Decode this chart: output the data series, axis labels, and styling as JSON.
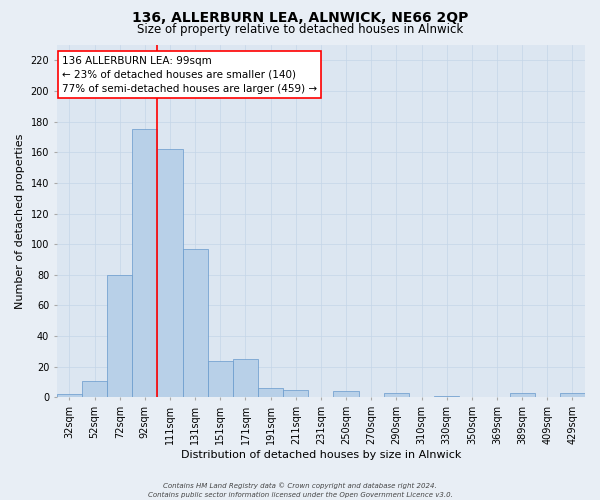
{
  "title": "136, ALLERBURN LEA, ALNWICK, NE66 2QP",
  "subtitle": "Size of property relative to detached houses in Alnwick",
  "xlabel": "Distribution of detached houses by size in Alnwick",
  "ylabel": "Number of detached properties",
  "bar_labels": [
    "32sqm",
    "52sqm",
    "72sqm",
    "92sqm",
    "111sqm",
    "131sqm",
    "151sqm",
    "171sqm",
    "191sqm",
    "211sqm",
    "231sqm",
    "250sqm",
    "270sqm",
    "290sqm",
    "310sqm",
    "330sqm",
    "350sqm",
    "369sqm",
    "389sqm",
    "409sqm",
    "429sqm"
  ],
  "bar_values": [
    2,
    11,
    80,
    175,
    162,
    97,
    24,
    25,
    6,
    5,
    0,
    4,
    0,
    3,
    0,
    1,
    0,
    0,
    3,
    0,
    3
  ],
  "bar_color": "#b8d0e8",
  "bar_edge_color": "#6699cc",
  "vline_color": "red",
  "vline_position": 3.5,
  "ylim": [
    0,
    230
  ],
  "yticks": [
    0,
    20,
    40,
    60,
    80,
    100,
    120,
    140,
    160,
    180,
    200,
    220
  ],
  "annotation_title": "136 ALLERBURN LEA: 99sqm",
  "annotation_line1": "← 23% of detached houses are smaller (140)",
  "annotation_line2": "77% of semi-detached houses are larger (459) →",
  "annotation_box_color": "white",
  "annotation_box_edge": "red",
  "footer_line1": "Contains HM Land Registry data © Crown copyright and database right 2024.",
  "footer_line2": "Contains public sector information licensed under the Open Government Licence v3.0.",
  "background_color": "#e8eef5",
  "plot_bg_color": "#dce6f1",
  "grid_color": "#c5d5e8",
  "title_fontsize": 10,
  "subtitle_fontsize": 8.5,
  "xlabel_fontsize": 8,
  "ylabel_fontsize": 8,
  "tick_fontsize": 7,
  "footer_fontsize": 5,
  "ann_fontsize": 7.5
}
